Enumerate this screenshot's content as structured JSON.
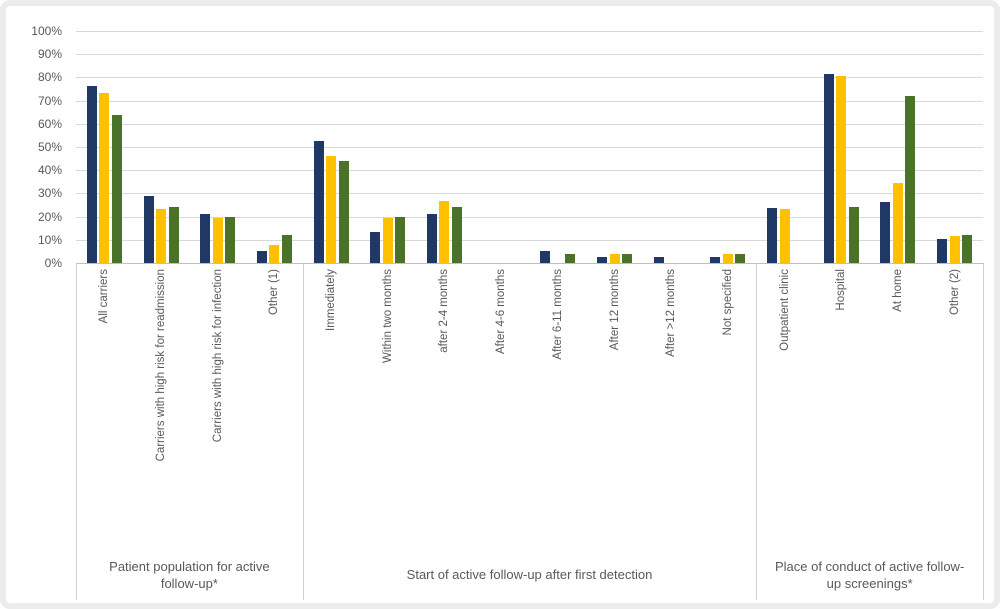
{
  "chart_data": {
    "type": "bar",
    "title": "",
    "xlabel": "",
    "ylabel": "",
    "ylim": [
      0,
      100
    ],
    "grid": true,
    "legend_position": "none",
    "y_tick_labels": [
      "0%",
      "10%",
      "20%",
      "30%",
      "40%",
      "50%",
      "60%",
      "70%",
      "80%",
      "90%",
      "100%"
    ],
    "categories": [
      "All carriers",
      "Carriers with high risk for readmission",
      "Carriers with high risk for infection",
      "Other (1)",
      "Immediately",
      "Within two months",
      "after 2-4 months",
      "After 4-6 months",
      "After 6-11 months",
      "After 12 months",
      "After >12 months",
      "Not specified",
      "Outpatient clinic",
      "Hospital",
      "At home",
      "Other (2)"
    ],
    "groups": [
      {
        "label": "Patient population for active follow-up*",
        "span": 4
      },
      {
        "label": "Start of active follow-up after first detection",
        "span": 8
      },
      {
        "label": "Place of conduct of active follow-up screenings*",
        "span": 4
      }
    ],
    "series": [
      {
        "name": "dark-blue-series",
        "color": "#1f3864",
        "values": [
          76.3,
          28.9,
          21.1,
          5.3,
          52.6,
          13.2,
          21.1,
          0,
          5.3,
          2.6,
          2.6,
          2.6,
          23.7,
          81.6,
          26.3,
          10.5
        ]
      },
      {
        "name": "yellow-series",
        "color": "#ffc000",
        "values": [
          73.1,
          23.1,
          19.2,
          7.7,
          46.2,
          19.2,
          26.9,
          0,
          0,
          3.8,
          0,
          3.8,
          23.1,
          80.8,
          34.6,
          11.5
        ]
      },
      {
        "name": "green-series",
        "color": "#4a7229",
        "values": [
          64,
          24,
          20,
          12,
          44,
          20,
          24,
          0,
          4,
          4,
          0,
          4,
          0,
          24,
          72,
          12
        ]
      }
    ],
    "colors": {
      "gridline": "#d9d9d9",
      "axis_line": "#bfbfbf",
      "separator_line": "#d0d0d0",
      "label_text": "#595959"
    }
  }
}
